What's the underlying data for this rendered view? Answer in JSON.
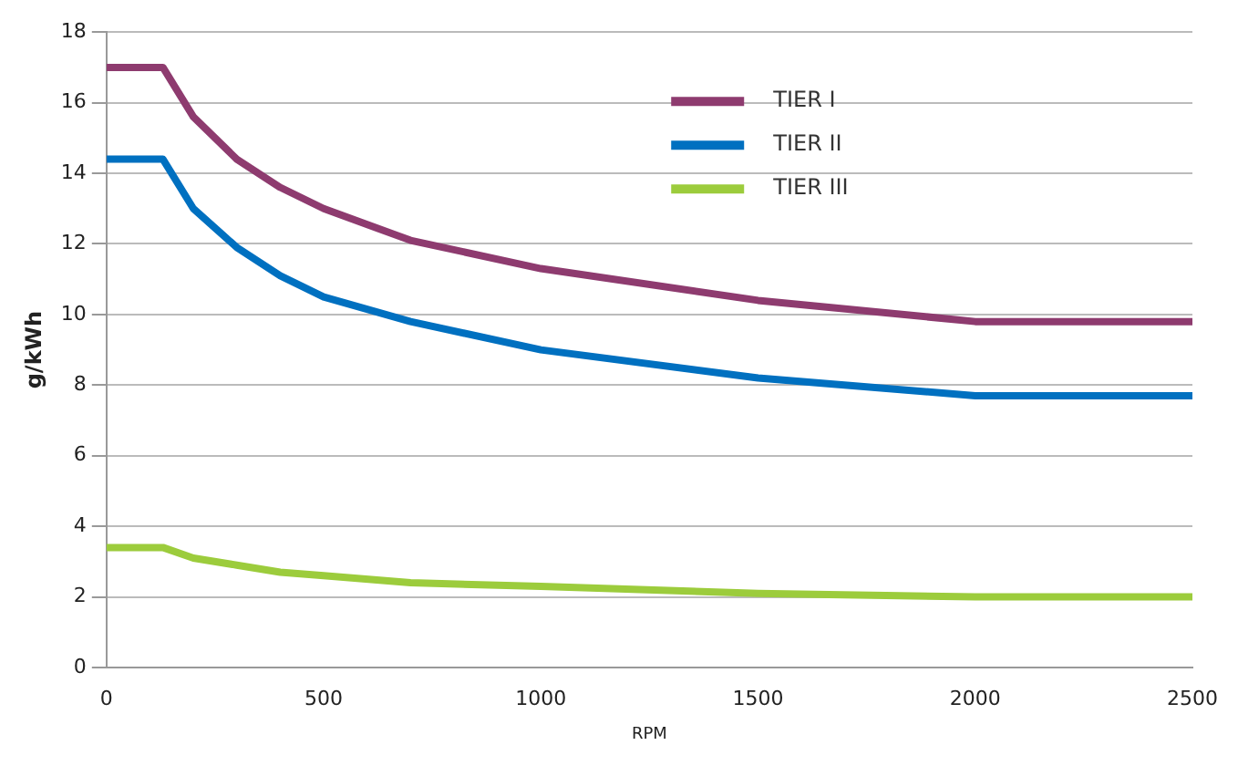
{
  "chart_data": {
    "type": "line",
    "xlabel": "RPM",
    "ylabel": "g/kWh",
    "xlim": [
      0,
      2500
    ],
    "xticks": [
      0,
      500,
      1000,
      1500,
      2000,
      2500
    ],
    "ylim": [
      0,
      18
    ],
    "yticks": [
      0,
      2,
      4,
      6,
      8,
      10,
      12,
      14,
      16,
      18
    ],
    "grid": "y",
    "legend": "top",
    "marker": "none",
    "line_style": "solid",
    "series": [
      {
        "name": "TIER I",
        "color": "#8e3b6f",
        "x": [
          0,
          130,
          200,
          300,
          400,
          500,
          700,
          1000,
          1500,
          2000,
          2500
        ],
        "values": [
          17,
          17,
          15.6,
          14.4,
          13.6,
          13.0,
          12.1,
          11.3,
          10.4,
          9.8,
          9.8
        ]
      },
      {
        "name": "TIER II",
        "color": "#0070c0",
        "x": [
          0,
          130,
          200,
          300,
          400,
          500,
          700,
          1000,
          1500,
          2000,
          2500
        ],
        "values": [
          14.4,
          14.4,
          13.0,
          11.9,
          11.1,
          10.5,
          9.8,
          9.0,
          8.2,
          7.7,
          7.7
        ]
      },
      {
        "name": "TIER III",
        "color": "#9ccc3c",
        "x": [
          0,
          130,
          200,
          300,
          400,
          500,
          700,
          1000,
          1500,
          2000,
          2500
        ],
        "values": [
          3.4,
          3.4,
          3.1,
          2.9,
          2.7,
          2.6,
          2.4,
          2.3,
          2.1,
          2.0,
          2.0
        ]
      }
    ]
  }
}
